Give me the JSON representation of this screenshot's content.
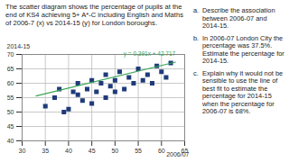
{
  "chart_data": {
    "type": "scatter",
    "x_label": "2006/07",
    "y_label": "2014-15",
    "x": [
      35,
      37,
      38,
      39,
      40,
      41,
      42,
      42,
      43,
      44,
      45,
      45,
      46,
      47,
      48,
      48,
      49,
      50,
      50,
      51,
      52,
      53,
      54,
      55,
      56,
      57,
      58,
      59,
      60,
      61,
      62
    ],
    "values": [
      52,
      55,
      58,
      50,
      51,
      57,
      56,
      60,
      54,
      58,
      53,
      61,
      57,
      60,
      55,
      63,
      59,
      57,
      61,
      64,
      58,
      62,
      60,
      65,
      61,
      63,
      60,
      66,
      64,
      62,
      67
    ],
    "color": "#1f3b7a",
    "marker": "square",
    "trendline": {
      "label": "y = 0.391x + 42.717",
      "x": [
        33,
        63
      ],
      "values": [
        55.6,
        67.35
      ],
      "color": "#3aa655"
    },
    "xlim": [
      30,
      65
    ],
    "xticks": [
      30,
      35,
      40,
      45,
      50,
      55,
      60,
      65
    ],
    "ylim": [
      40,
      70
    ],
    "yticks": [
      40,
      45,
      50,
      55,
      60,
      65,
      70
    ],
    "grid": true
  },
  "page": {
    "intro": "The scatter diagram shows the percentage of pupils at the end of KS4 achieving 5+ A*-C including English and Maths of 2006-7 (x) vs 2014-15 (y) for London boroughs.",
    "questions": [
      {
        "letter": "a.",
        "text": "Describe the association between 2006-07 and 2014-15."
      },
      {
        "letter": "b.",
        "text": "In 2006-07 London City the percentage was 37.5%. Estimate the percentage for 2014-15."
      },
      {
        "letter": "c.",
        "text": "Explain why it would not be sensible to use the line of best fit to estimate the percentage for 2014-15 when the percentage for 2006-07 is 68%."
      }
    ]
  }
}
